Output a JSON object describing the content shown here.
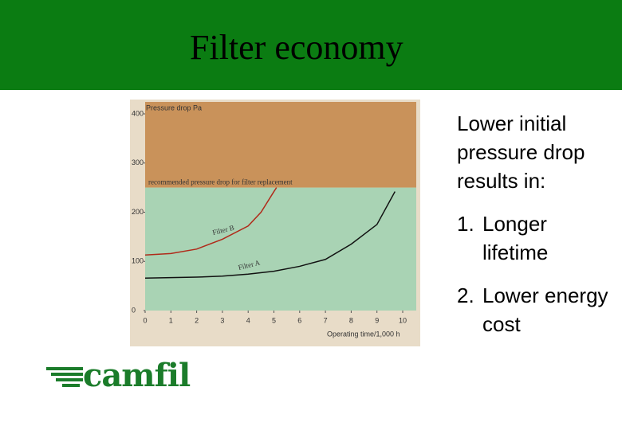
{
  "slide": {
    "title": "Filter economy",
    "intro": "Lower initial pressure drop results in:",
    "items": [
      {
        "marker": "1.",
        "text": "Longer lifetime"
      },
      {
        "marker": "2.",
        "text": "Lower energy cost"
      }
    ],
    "logo": "camfil"
  },
  "chart_data": {
    "type": "line",
    "ylabel": "Pressure drop Pa",
    "xlabel": "Operating time/1,000 h",
    "xlim": [
      0,
      10
    ],
    "xticks": [
      0,
      1,
      2,
      3,
      4,
      5,
      6,
      7,
      8,
      9,
      10
    ],
    "ylim": [
      0,
      400
    ],
    "yticks": [
      0,
      100,
      200,
      300,
      400
    ],
    "threshold": 250,
    "threshold_label": "recommended pressure drop for filter replacement",
    "above_color": "#c9925a",
    "below_color": "#a9d3b4",
    "series": [
      {
        "name": "Filter B",
        "color": "#b02a1a",
        "x": [
          0,
          1,
          2,
          3,
          4,
          4.5,
          5,
          5.1
        ],
        "values": [
          113,
          116,
          125,
          145,
          172,
          200,
          242,
          250
        ]
      },
      {
        "name": "Filter A",
        "color": "#111111",
        "x": [
          0,
          1,
          2,
          3,
          4,
          5,
          6,
          7,
          8,
          9,
          9.7
        ],
        "values": [
          66,
          67,
          68,
          70,
          74,
          80,
          90,
          104,
          135,
          175,
          242
        ]
      }
    ]
  }
}
